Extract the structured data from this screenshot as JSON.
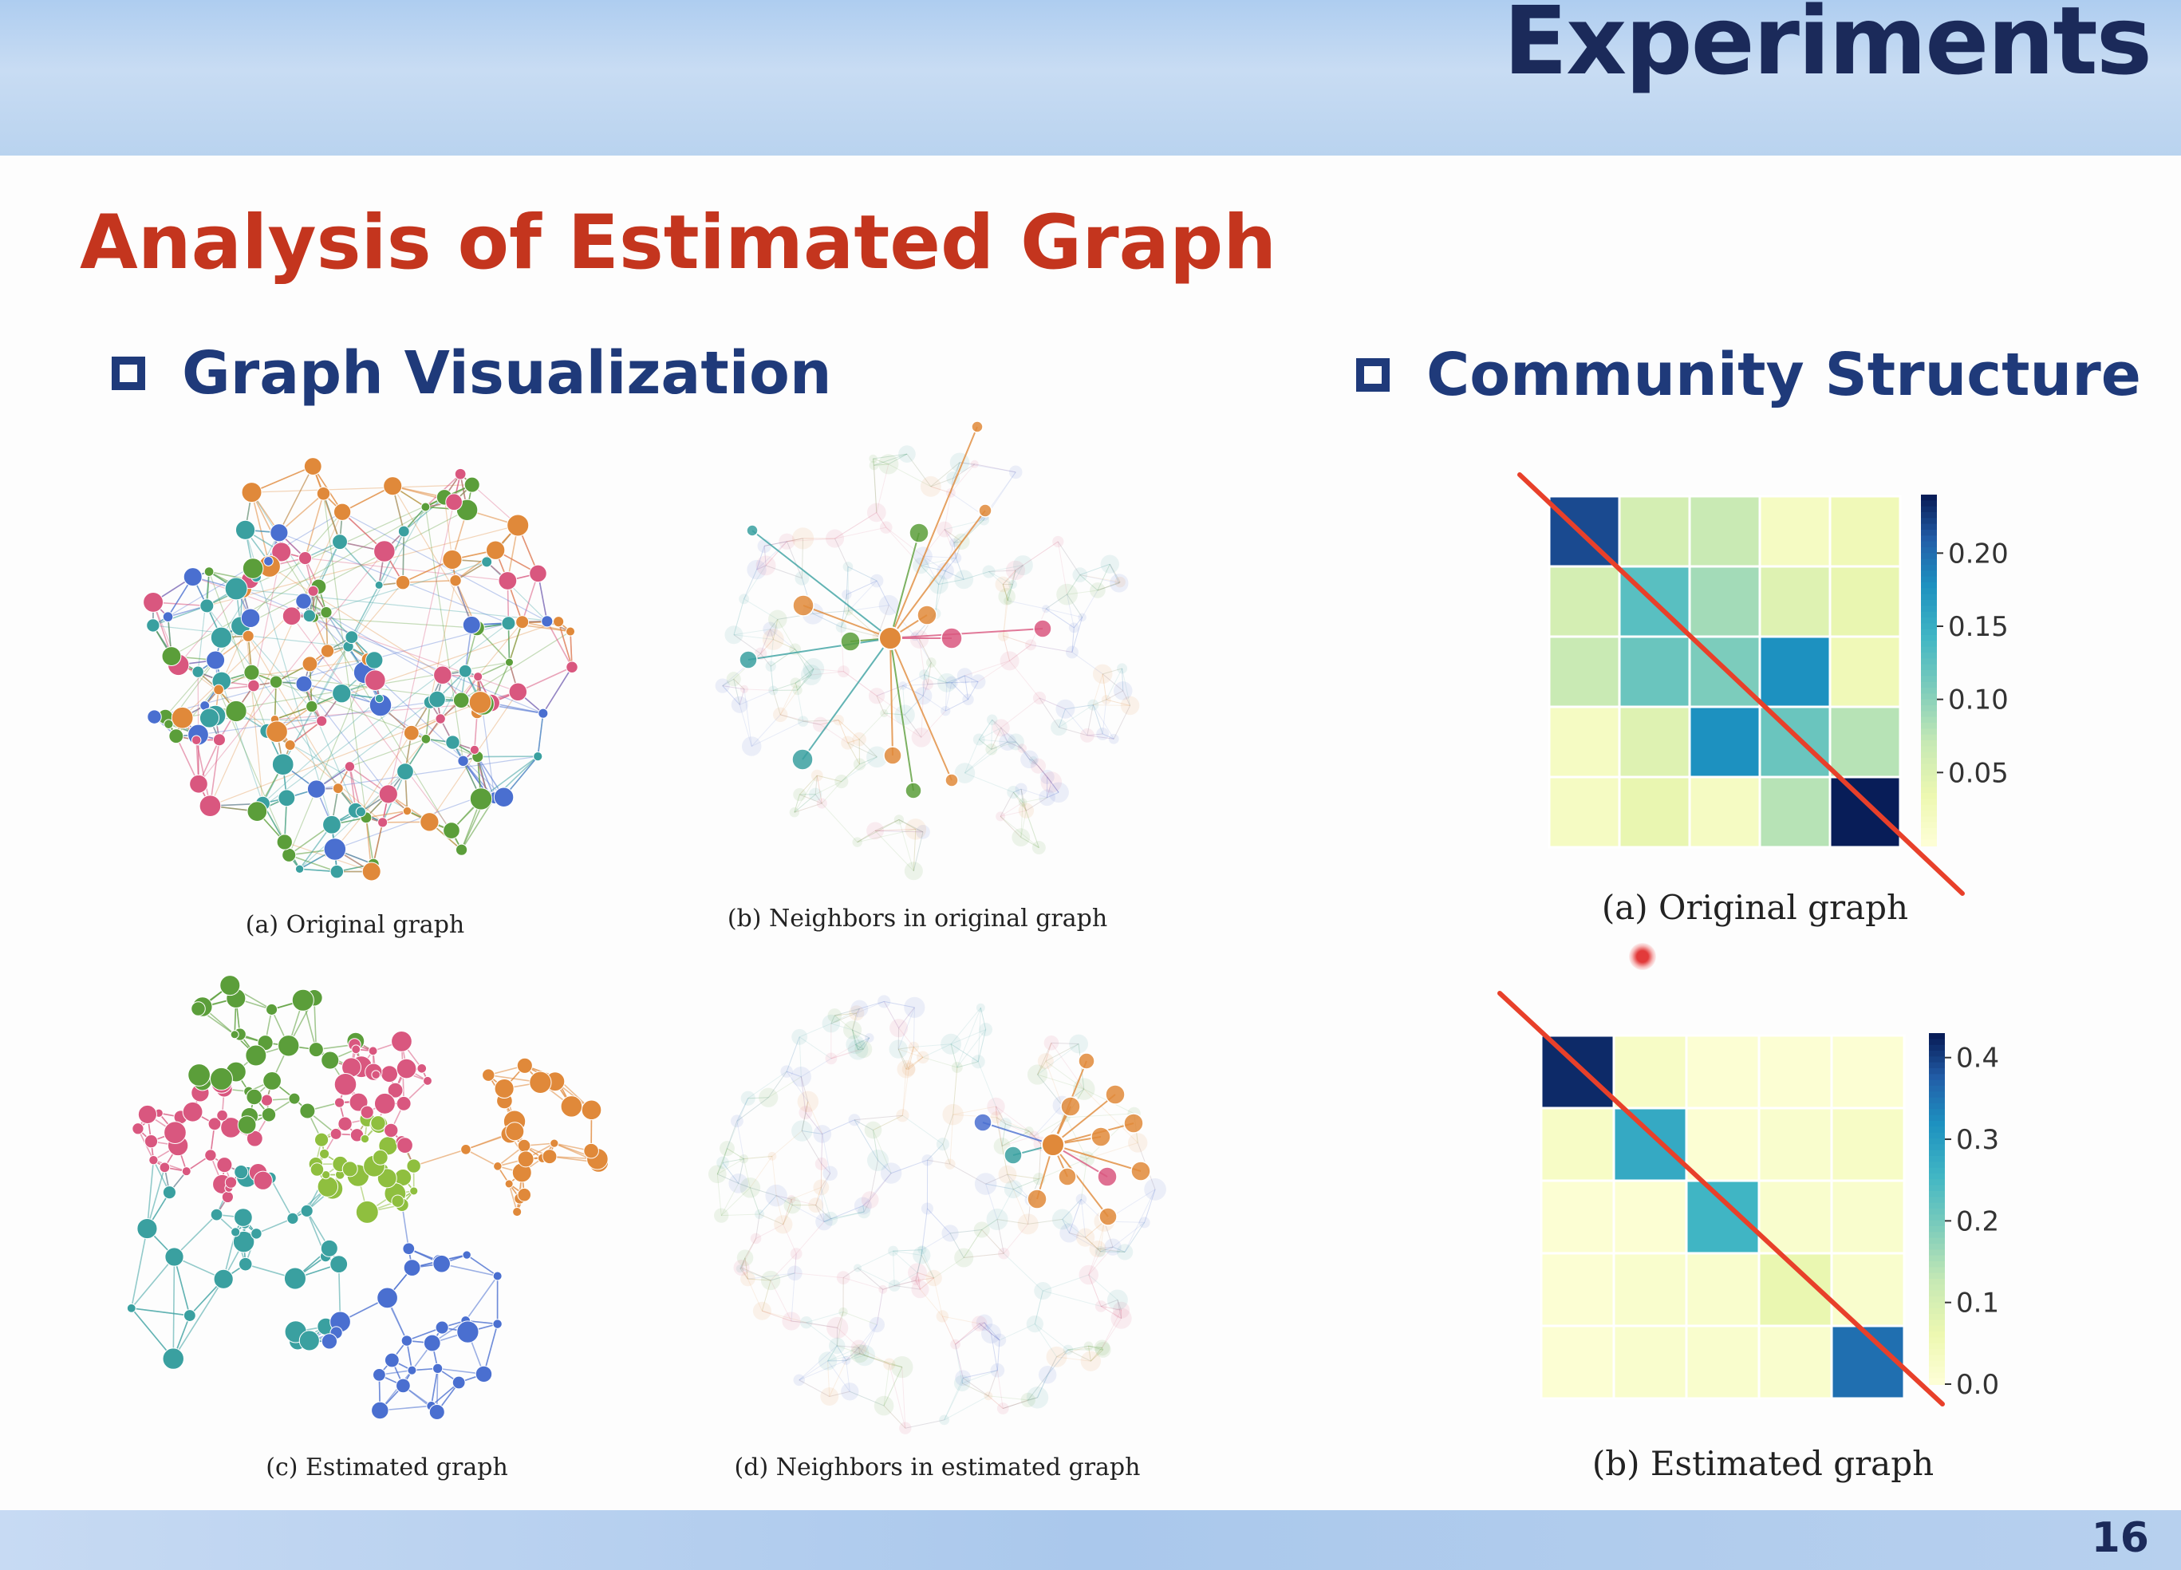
{
  "header": {
    "section_title": "Experiments"
  },
  "slide": {
    "title": "Analysis of Estimated Graph",
    "page_number": "16",
    "left_heading": "Graph Visualization",
    "right_heading": "Community Structure"
  },
  "graph_panels": [
    {
      "caption": "(a) Original graph"
    },
    {
      "caption": "(b) Neighbors in original graph"
    },
    {
      "caption": "(c) Estimated graph"
    },
    {
      "caption": "(d) Neighbors in estimated graph"
    }
  ],
  "community": {
    "colors": {
      "low": "#ffffd9",
      "mid": "#7fcdbb",
      "high": "#081d58",
      "annotation": "#e8402a"
    }
  },
  "chart_data": [
    {
      "type": "heatmap",
      "caption": "(a) Original graph",
      "rows": 5,
      "cols": 5,
      "values": [
        [
          0.22,
          0.06,
          0.07,
          0.02,
          0.03
        ],
        [
          0.06,
          0.13,
          0.09,
          0.05,
          0.04
        ],
        [
          0.07,
          0.12,
          0.11,
          0.18,
          0.03
        ],
        [
          0.02,
          0.05,
          0.18,
          0.12,
          0.08
        ],
        [
          0.02,
          0.04,
          0.02,
          0.08,
          0.24
        ]
      ],
      "colorbar": {
        "min": 0.0,
        "max": 0.24,
        "ticks": [
          0.05,
          0.1,
          0.15,
          0.2
        ],
        "tick_labels": [
          "0.05",
          "0.10",
          "0.15",
          "0.20"
        ]
      }
    },
    {
      "type": "heatmap",
      "caption": "(b) Estimated graph",
      "rows": 5,
      "cols": 5,
      "values": [
        [
          0.42,
          0.03,
          0.01,
          0.01,
          0.01
        ],
        [
          0.03,
          0.28,
          0.01,
          0.02,
          0.03
        ],
        [
          0.01,
          0.01,
          0.26,
          0.02,
          0.02
        ],
        [
          0.01,
          0.02,
          0.02,
          0.07,
          0.02
        ],
        [
          0.01,
          0.02,
          0.02,
          0.02,
          0.36
        ]
      ],
      "colorbar": {
        "min": 0.0,
        "max": 0.43,
        "ticks": [
          0.0,
          0.1,
          0.2,
          0.3,
          0.4
        ],
        "tick_labels": [
          "0.0",
          "0.1",
          "0.2",
          "0.3",
          "0.4"
        ]
      }
    }
  ]
}
